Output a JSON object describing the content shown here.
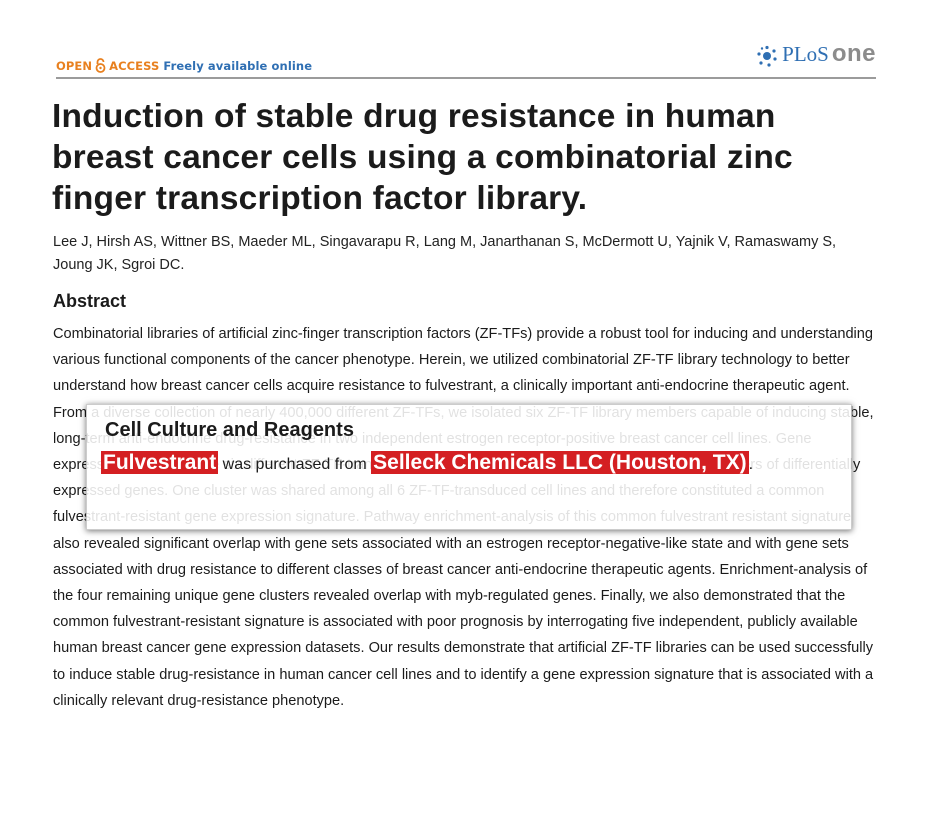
{
  "header": {
    "open_label": "OPEN",
    "access_label": "ACCESS",
    "freely_label": "Freely available online",
    "logo_plos": "PLoS",
    "logo_one": "one"
  },
  "paper": {
    "title": "Induction of stable drug resistance in human breast cancer cells using a combinatorial zinc finger transcription factor library.",
    "authors": "Lee J, Hirsh AS, Wittner BS, Maeder ML, Singavarapu R, Lang M, Janarthanan S, McDermott U, Yajnik V, Ramaswamy S, Joung JK, Sgroi DC.",
    "abstract_heading": "Abstract",
    "abstract_text": "Combinatorial libraries of artificial zinc-finger transcription factors (ZF-TFs) provide a robust tool for inducing and understanding various functional components of the cancer phenotype. Herein, we utilized combinatorial ZF-TF library technology to better understand how breast cancer cells acquire resistance to fulvestrant, a clinically important anti-endocrine therapeutic agent. From a diverse collection of nearly 400,000 different ZF-TFs, we isolated six ZF-TF library members capable of inducing stable, long-term anti-endocrine drug-resistance in two independent estrogen receptor-positive breast cancer cell lines. Gene expression profiling of the six different ZF-TF-transduced breast cancer cell lines revealed five distinct clusters of differentially expressed genes. One cluster was shared among all 6 ZF-TF-transduced cell lines and therefore constituted a common fulvestrant-resistant gene expression signature. Pathway enrichment-analysis of this common fulvestrant resistant signature also revealed significant overlap with gene sets associated with an estrogen receptor-negative-like state and with gene sets associated with drug resistance to different classes of breast cancer anti-endocrine therapeutic agents. Enrichment-analysis of the four remaining unique gene clusters revealed overlap with myb-regulated genes. Finally, we also demonstrated that the common fulvestrant-resistant signature is associated with poor prognosis by interrogating five independent, publicly available human breast cancer gene expression datasets. Our results demonstrate that artificial ZF-TF libraries can be used successfully to induce stable drug-resistance in human cancer cell lines and to identify a gene expression signature that is associated with a clinically relevant drug-resistance phenotype."
  },
  "popup": {
    "title": "Cell Culture and Reagents",
    "drug": "Fulvestrant",
    "middle": " was purchased from ",
    "supplier": "Selleck Chemicals LLC (Houston, TX)",
    "end": "."
  },
  "colors": {
    "open_access_orange": "#e8801f",
    "plos_blue": "#2f6fb3",
    "highlight_red": "#d41f22"
  }
}
